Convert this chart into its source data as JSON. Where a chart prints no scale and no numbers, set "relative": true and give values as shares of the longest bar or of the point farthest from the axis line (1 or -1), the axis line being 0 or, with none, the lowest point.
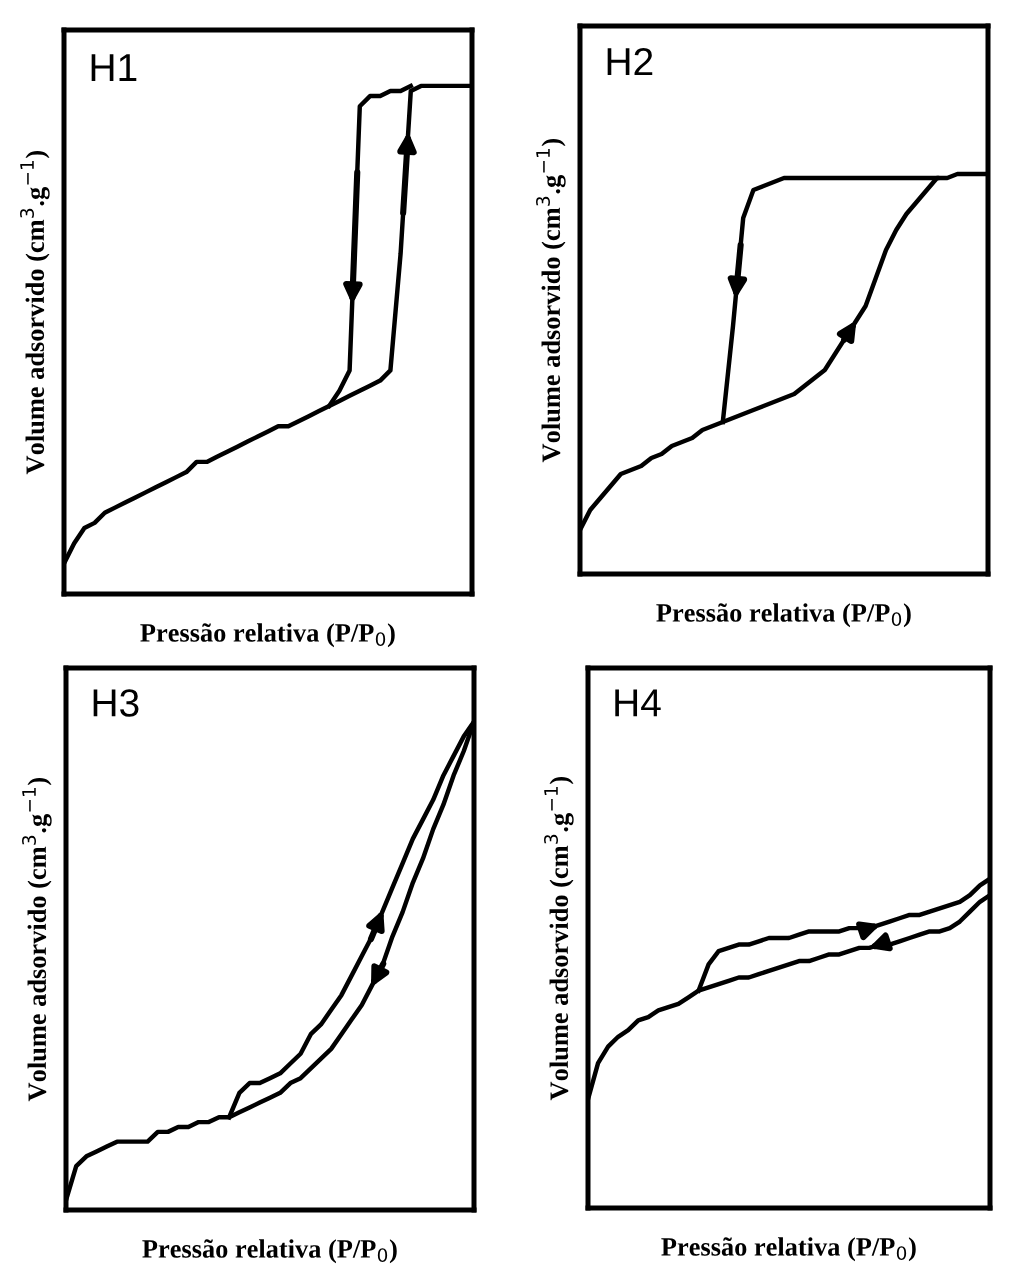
{
  "chart_data": [
    {
      "type": "line",
      "relative": true,
      "title": "H1",
      "xlabel": "Pressão relativa (P/P$_{0}$)",
      "ylabel": "Volume adsorvido (cm$^{3}$.g$^{−1}$)",
      "categories": [
        null,
        null,
        null,
        null,
        null,
        null,
        null,
        null,
        null,
        null,
        null,
        null,
        null,
        null,
        null,
        null,
        null,
        null,
        null,
        null,
        null,
        null,
        null,
        null,
        null,
        null,
        null,
        null,
        null,
        null,
        null,
        null,
        null,
        null,
        null,
        null,
        null,
        null,
        null,
        null,
        null
      ],
      "series": [
        {
          "color": "#000000",
          "values": [
            0.06,
            0.1,
            0.13,
            0.14,
            0.16,
            0.17,
            0.18,
            0.19,
            0.2,
            0.21,
            0.22,
            0.23,
            0.24,
            0.26,
            0.26,
            0.27,
            0.28,
            0.29,
            0.3,
            0.31,
            0.32,
            0.33,
            0.33,
            0.34,
            0.35,
            0.36,
            0.37,
            0.38,
            0.39,
            0.4,
            0.41,
            0.42,
            0.44,
            0.67,
            0.99,
            1,
            1,
            1,
            1,
            1,
            1
          ]
        },
        {
          "color": "#000000",
          "values": [
            null,
            null,
            null,
            null,
            null,
            null,
            null,
            null,
            null,
            null,
            null,
            null,
            null,
            null,
            null,
            null,
            null,
            null,
            null,
            null,
            null,
            null,
            null,
            null,
            null,
            null,
            0.37,
            0.4,
            0.44,
            0.96,
            0.98,
            0.98,
            0.99,
            0.99,
            1,
            null,
            null,
            null,
            null,
            null,
            null
          ]
        }
      ]
    },
    {
      "type": "line",
      "relative": true,
      "title": "H2",
      "xlabel": "Pressão relativa (P/P$_{0}$)",
      "ylabel": "Volume adsorvido (cm$^{3}$.g$^{−1}$)",
      "categories": [
        null,
        null,
        null,
        null,
        null,
        null,
        null,
        null,
        null,
        null,
        null,
        null,
        null,
        null,
        null,
        null,
        null,
        null,
        null,
        null,
        null,
        null,
        null,
        null,
        null,
        null,
        null,
        null,
        null,
        null,
        null,
        null,
        null,
        null,
        null,
        null,
        null,
        null,
        null,
        null,
        null
      ],
      "series": [
        {
          "color": "#000000",
          "values": [
            0.11,
            0.16,
            0.19,
            0.22,
            0.25,
            0.26,
            0.27,
            0.29,
            0.3,
            0.32,
            0.33,
            0.34,
            0.36,
            0.37,
            0.38,
            0.39,
            0.4,
            0.41,
            0.42,
            0.43,
            0.44,
            0.45,
            0.47,
            0.49,
            0.51,
            0.55,
            0.59,
            0.63,
            0.67,
            0.74,
            0.81,
            0.86,
            0.9,
            0.93,
            0.96,
            0.99,
            0.99,
            1,
            1,
            1,
            1
          ]
        },
        {
          "color": "#000000",
          "values": [
            null,
            null,
            null,
            null,
            null,
            null,
            null,
            null,
            null,
            null,
            null,
            null,
            null,
            null,
            0.38,
            0.62,
            0.89,
            0.96,
            0.97,
            0.98,
            0.99,
            0.99,
            0.99,
            0.99,
            0.99,
            0.99,
            0.99,
            0.99,
            0.99,
            0.99,
            0.99,
            0.99,
            0.99,
            0.99,
            0.99,
            0.99,
            null,
            null,
            null,
            null,
            null
          ]
        }
      ]
    },
    {
      "type": "line",
      "relative": true,
      "title": "H3",
      "xlabel": "Pressão relativa (P/P$_{0}$)",
      "ylabel": "Volume adsorvido (cm$^{3}$.g$^{−1}$)",
      "categories": [
        null,
        null,
        null,
        null,
        null,
        null,
        null,
        null,
        null,
        null,
        null,
        null,
        null,
        null,
        null,
        null,
        null,
        null,
        null,
        null,
        null,
        null,
        null,
        null,
        null,
        null,
        null,
        null,
        null,
        null,
        null,
        null,
        null,
        null,
        null,
        null,
        null,
        null,
        null,
        null,
        null
      ],
      "series": [
        {
          "color": "#000000",
          "values": [
            null,
            null,
            null,
            null,
            null,
            null,
            null,
            null,
            null,
            null,
            null,
            null,
            null,
            null,
            null,
            null,
            0.19,
            0.24,
            0.26,
            0.26,
            0.27,
            0.28,
            0.3,
            0.32,
            0.36,
            0.38,
            0.41,
            0.44,
            0.48,
            0.52,
            0.56,
            0.61,
            0.66,
            0.71,
            0.76,
            0.8,
            0.84,
            0.89,
            0.93,
            0.97,
            1
          ]
        },
        {
          "color": "#000000",
          "values": [
            0.02,
            0.09,
            0.11,
            0.12,
            0.13,
            0.14,
            0.14,
            0.14,
            0.14,
            0.16,
            0.16,
            0.17,
            0.17,
            0.18,
            0.18,
            0.19,
            0.19,
            0.2,
            0.21,
            0.22,
            0.23,
            0.24,
            0.26,
            0.27,
            0.29,
            0.31,
            0.33,
            0.36,
            0.39,
            0.42,
            0.46,
            0.5,
            0.56,
            0.61,
            0.67,
            0.72,
            0.78,
            0.83,
            0.89,
            0.94,
            1
          ]
        }
      ]
    },
    {
      "type": "line",
      "relative": true,
      "title": "H4",
      "xlabel": "Pressão relativa (P/P$_{0}$)",
      "ylabel": "Volume adsorvido (cm$^{3}$.g$^{−1}$)",
      "categories": [
        null,
        null,
        null,
        null,
        null,
        null,
        null,
        null,
        null,
        null,
        null,
        null,
        null,
        null,
        null,
        null,
        null,
        null,
        null,
        null,
        null,
        null,
        null,
        null,
        null,
        null,
        null,
        null,
        null,
        null,
        null,
        null,
        null,
        null,
        null,
        null,
        null,
        null,
        null,
        null,
        null
      ],
      "series": [
        {
          "color": "#000000",
          "values": [
            null,
            null,
            null,
            null,
            null,
            null,
            null,
            null,
            null,
            null,
            null,
            0.66,
            0.74,
            0.78,
            0.79,
            0.8,
            0.8,
            0.81,
            0.82,
            0.82,
            0.82,
            0.83,
            0.84,
            0.84,
            0.84,
            0.84,
            0.85,
            0.85,
            0.85,
            0.86,
            0.87,
            0.88,
            0.89,
            0.89,
            0.9,
            0.91,
            0.92,
            0.93,
            0.95,
            0.98,
            1
          ]
        },
        {
          "color": "#000000",
          "values": [
            0.33,
            0.44,
            0.49,
            0.52,
            0.54,
            0.57,
            0.58,
            0.6,
            0.61,
            0.62,
            0.64,
            0.66,
            0.67,
            0.68,
            0.69,
            0.7,
            0.7,
            0.71,
            0.72,
            0.73,
            0.74,
            0.75,
            0.75,
            0.76,
            0.77,
            0.77,
            0.78,
            0.79,
            0.79,
            0.8,
            0.8,
            0.81,
            0.82,
            0.83,
            0.84,
            0.84,
            0.85,
            0.87,
            0.9,
            0.93,
            0.95
          ]
        }
      ]
    }
  ]
}
